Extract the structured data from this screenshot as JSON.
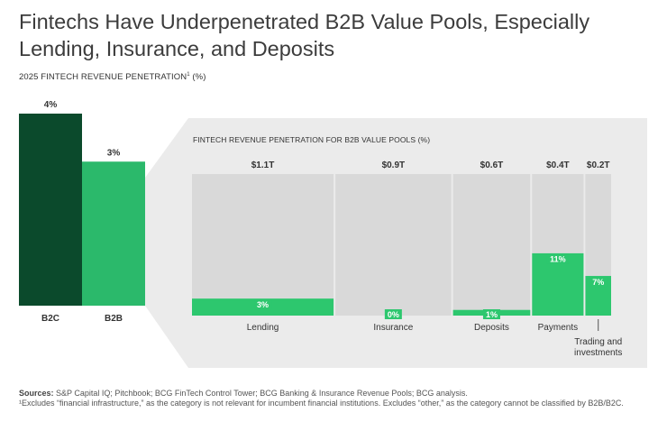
{
  "title": "Fintechs Have Underpenetrated B2B Value Pools, Especially Lending, Insurance, and Deposits",
  "subtitle": "2025 FINTECH REVENUE PENETRATION",
  "subtitle_sup": "1",
  "subtitle_unit": "(%)",
  "colors": {
    "b2c": "#0b4a2c",
    "b2b": "#2bb96b",
    "green": "#2dc76e",
    "panel": "#ebebeb",
    "pool": "#d9d9d9"
  },
  "chart_data": [
    {
      "type": "bar",
      "categories": [
        "B2C",
        "B2B"
      ],
      "values": [
        4,
        3
      ],
      "value_labels": [
        "4%",
        "3%"
      ],
      "ylim": [
        0,
        4
      ]
    },
    {
      "type": "bar",
      "title": "FINTECH REVENUE PENETRATION FOR B2B VALUE POOLS (%)",
      "categories": [
        "Lending",
        "Insurance",
        "Deposits",
        "Payments",
        "Trading and investments"
      ],
      "pool_sizes_trillion": [
        1.1,
        0.9,
        0.6,
        0.4,
        0.2
      ],
      "pool_labels": [
        "$1.1T",
        "$0.9T",
        "$0.6T",
        "$0.4T",
        "$0.2T"
      ],
      "values": [
        3,
        0,
        1,
        11,
        7
      ],
      "value_labels": [
        "3%",
        "0%",
        "1%",
        "11%",
        "7%"
      ]
    }
  ],
  "footer": {
    "sources_label": "Sources:",
    "sources_text": " S&P Capital IQ; Pitchbook; BCG FinTech Control Tower; BCG Banking & Insurance Revenue Pools; BCG analysis.",
    "note": "¹Excludes “financial infrastructure,” as the category is not relevant for incumbent financial institutions. Excludes “other,” as the category cannot be classified by B2B/B2C."
  }
}
